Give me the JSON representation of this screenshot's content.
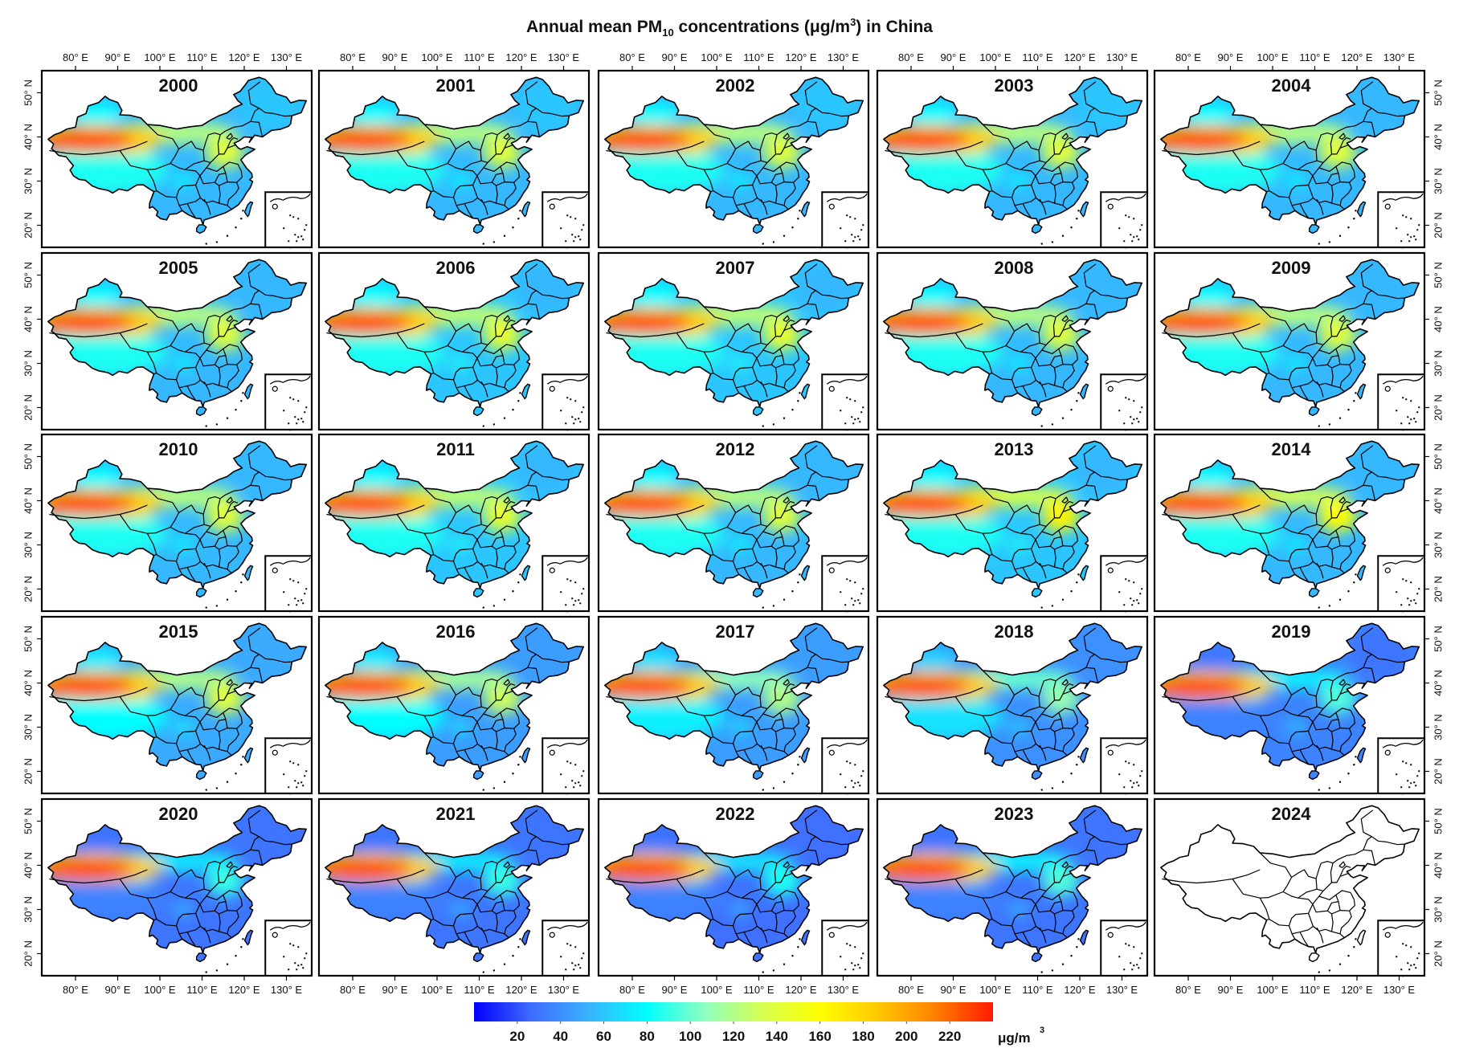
{
  "title": {
    "prefix": "Annual mean PM",
    "subscript": "10",
    "middle": " concentrations (μg/m",
    "superscript": "3",
    "suffix": ") in China"
  },
  "chart_data": {
    "type": "heatmap",
    "title": "Annual mean PM10 concentrations (μg/m3) in China",
    "layout": {
      "rows": 5,
      "cols": 5
    },
    "x_ticks": [
      "80° E",
      "90° E",
      "100° E",
      "110° E",
      "120° E",
      "130° E"
    ],
    "x_tick_values": [
      80,
      90,
      100,
      110,
      120,
      130
    ],
    "y_ticks": [
      "20° N",
      "30° N",
      "40° N",
      "50° N"
    ],
    "y_tick_values": [
      20,
      30,
      40,
      50
    ],
    "xlim": [
      72,
      136
    ],
    "ylim": [
      15,
      55
    ],
    "colorbar": {
      "ticks": [
        "20",
        "40",
        "60",
        "80",
        "100",
        "120",
        "140",
        "160",
        "180",
        "200",
        "220"
      ],
      "range": [
        0,
        240
      ],
      "unit": "μg/m",
      "unit_sup": "3",
      "colors": [
        "#0000ff",
        "#3f6cff",
        "#39b3ff",
        "#00ffff",
        "#8effc0",
        "#d6ff50",
        "#ffff00",
        "#ffc800",
        "#ff8000",
        "#ff1a00"
      ]
    },
    "panels": [
      {
        "year": "2000",
        "has_data": true,
        "taklimakan": 240,
        "north_china": 140,
        "south": 55,
        "northeast": 60,
        "tibet": 85
      },
      {
        "year": "2001",
        "has_data": true,
        "taklimakan": 240,
        "north_china": 140,
        "south": 55,
        "northeast": 60,
        "tibet": 85
      },
      {
        "year": "2002",
        "has_data": true,
        "taklimakan": 240,
        "north_china": 140,
        "south": 55,
        "northeast": 60,
        "tibet": 85
      },
      {
        "year": "2003",
        "has_data": true,
        "taklimakan": 240,
        "north_china": 140,
        "south": 55,
        "northeast": 60,
        "tibet": 85
      },
      {
        "year": "2004",
        "has_data": true,
        "taklimakan": 240,
        "north_china": 140,
        "south": 55,
        "northeast": 55,
        "tibet": 85
      },
      {
        "year": "2005",
        "has_data": true,
        "taklimakan": 240,
        "north_china": 140,
        "south": 55,
        "northeast": 55,
        "tibet": 85
      },
      {
        "year": "2006",
        "has_data": true,
        "taklimakan": 240,
        "north_china": 145,
        "south": 60,
        "northeast": 55,
        "tibet": 85
      },
      {
        "year": "2007",
        "has_data": true,
        "taklimakan": 240,
        "north_china": 145,
        "south": 60,
        "northeast": 55,
        "tibet": 85
      },
      {
        "year": "2008",
        "has_data": true,
        "taklimakan": 240,
        "north_china": 140,
        "south": 55,
        "northeast": 55,
        "tibet": 85
      },
      {
        "year": "2009",
        "has_data": true,
        "taklimakan": 240,
        "north_china": 140,
        "south": 55,
        "northeast": 55,
        "tibet": 85
      },
      {
        "year": "2010",
        "has_data": true,
        "taklimakan": 240,
        "north_china": 140,
        "south": 55,
        "northeast": 55,
        "tibet": 85
      },
      {
        "year": "2011",
        "has_data": true,
        "taklimakan": 240,
        "north_china": 145,
        "south": 60,
        "northeast": 55,
        "tibet": 85
      },
      {
        "year": "2012",
        "has_data": true,
        "taklimakan": 240,
        "north_china": 140,
        "south": 55,
        "northeast": 55,
        "tibet": 85
      },
      {
        "year": "2013",
        "has_data": true,
        "taklimakan": 240,
        "north_china": 165,
        "south": 60,
        "northeast": 55,
        "tibet": 85
      },
      {
        "year": "2014",
        "has_data": true,
        "taklimakan": 240,
        "north_china": 160,
        "south": 55,
        "northeast": 55,
        "tibet": 85
      },
      {
        "year": "2015",
        "has_data": true,
        "taklimakan": 240,
        "north_china": 140,
        "south": 50,
        "northeast": 50,
        "tibet": 80
      },
      {
        "year": "2016",
        "has_data": true,
        "taklimakan": 240,
        "north_china": 130,
        "south": 45,
        "northeast": 45,
        "tibet": 80
      },
      {
        "year": "2017",
        "has_data": true,
        "taklimakan": 240,
        "north_china": 120,
        "south": 45,
        "northeast": 45,
        "tibet": 75
      },
      {
        "year": "2018",
        "has_data": true,
        "taklimakan": 240,
        "north_china": 110,
        "south": 40,
        "northeast": 40,
        "tibet": 70
      },
      {
        "year": "2019",
        "has_data": true,
        "taklimakan": 240,
        "north_china": 95,
        "south": 35,
        "northeast": 30,
        "tibet": 35
      },
      {
        "year": "2020",
        "has_data": true,
        "taklimakan": 240,
        "north_china": 90,
        "south": 30,
        "northeast": 30,
        "tibet": 35
      },
      {
        "year": "2021",
        "has_data": true,
        "taklimakan": 240,
        "north_china": 90,
        "south": 30,
        "northeast": 30,
        "tibet": 35
      },
      {
        "year": "2022",
        "has_data": true,
        "taklimakan": 240,
        "north_china": 85,
        "south": 28,
        "northeast": 28,
        "tibet": 35
      },
      {
        "year": "2023",
        "has_data": true,
        "taklimakan": 240,
        "north_china": 95,
        "south": 30,
        "northeast": 30,
        "tibet": 35
      },
      {
        "year": "2024",
        "has_data": false
      }
    ]
  }
}
